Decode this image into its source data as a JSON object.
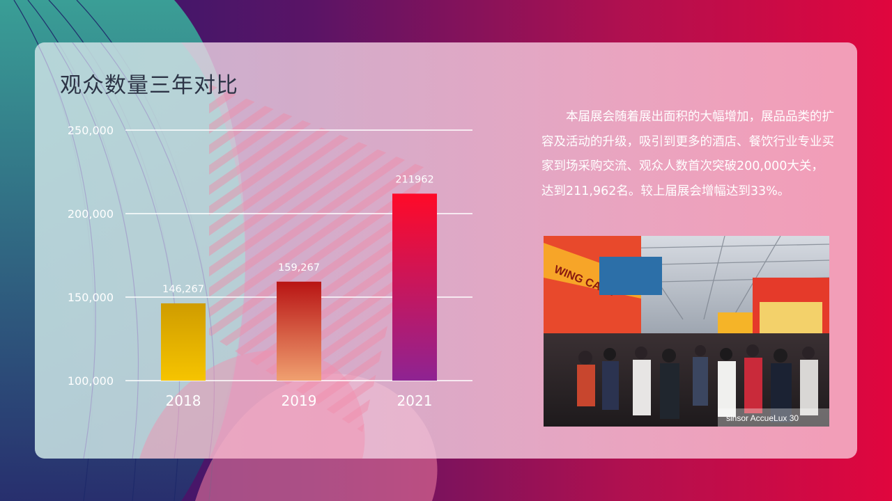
{
  "slide": {
    "title": "观众数量三年对比",
    "description": "本届展会随着展出面积的大幅增加，展品品类的扩容及活动的升级，吸引到更多的酒店、餐饮行业专业买家到场采购交流、观众人数首次突破200,000大关，达到211,962名。较上届展会增幅达到33%。"
  },
  "photo": {
    "sign_text": "WING CAFE",
    "footer_text": "sinsor AccueLux 30"
  },
  "colors": {
    "bar_2018_top": "#cf9c00",
    "bar_2018_bottom": "#f6c400",
    "bar_2019_top": "#b81414",
    "bar_2019_bottom": "#f0a070",
    "bar_2021_top": "#ff0a28",
    "bar_2021_bottom": "#8e2392"
  },
  "chart_data": {
    "type": "bar",
    "title": "",
    "xlabel": "",
    "ylabel": "",
    "categories": [
      "2018",
      "2019",
      "2021"
    ],
    "values": [
      146267,
      159267,
      211962
    ],
    "data_labels": [
      "146,267",
      "159,267",
      "211962"
    ],
    "ylim": [
      100000,
      250000
    ],
    "yticks": [
      100000,
      150000,
      200000,
      250000
    ],
    "ytick_labels": [
      "100,000",
      "150,000",
      "200,000",
      "250,000"
    ],
    "grid": true,
    "legend": "none"
  }
}
